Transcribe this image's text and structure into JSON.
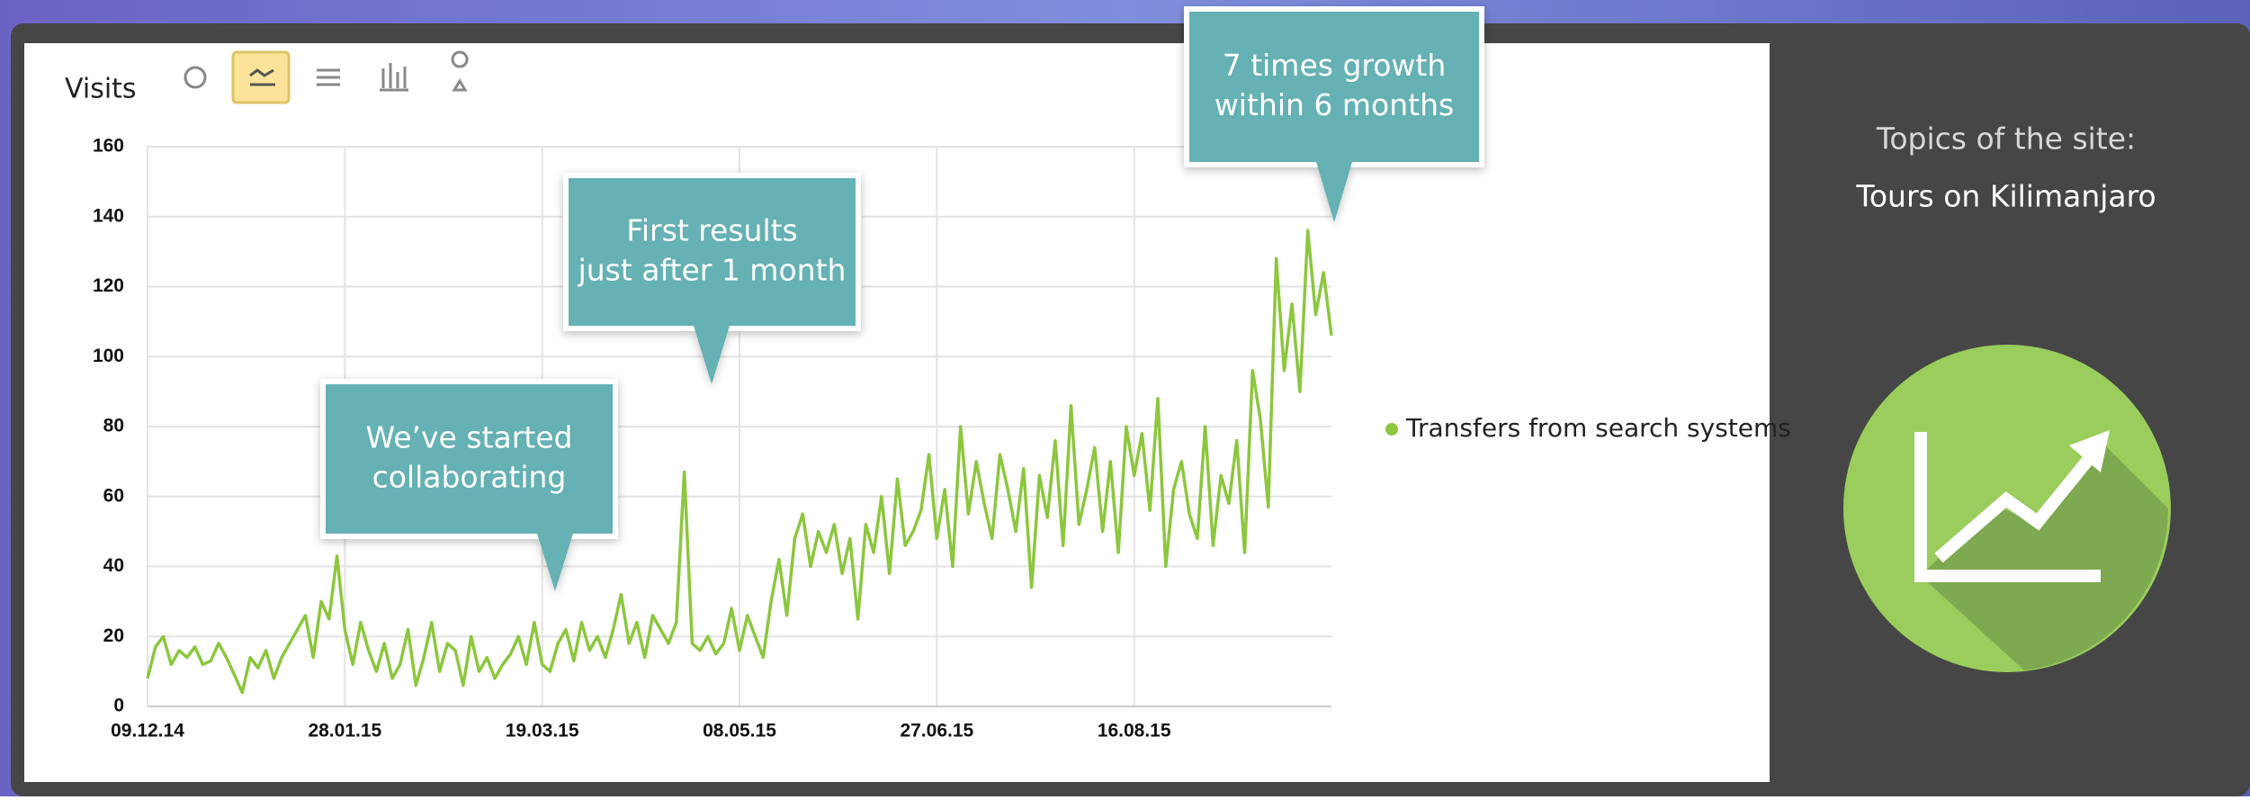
{
  "chart_data": {
    "type": "line",
    "ylabel": "Visits",
    "categories": [
      "09.12.14",
      null,
      null,
      null,
      null,
      null,
      null,
      null,
      null,
      null,
      null,
      null,
      null,
      null,
      null,
      null,
      null,
      null,
      null,
      null,
      null,
      null,
      null,
      null,
      null,
      "28.01.15",
      null,
      null,
      null,
      null,
      null,
      null,
      null,
      null,
      null,
      null,
      null,
      null,
      null,
      null,
      null,
      null,
      null,
      null,
      null,
      null,
      null,
      null,
      null,
      null,
      "19.03.15",
      null,
      null,
      null,
      null,
      null,
      null,
      null,
      null,
      null,
      null,
      null,
      null,
      null,
      null,
      null,
      null,
      null,
      null,
      null,
      null,
      null,
      null,
      null,
      null,
      "08.05.15",
      null,
      null,
      null,
      null,
      null,
      null,
      null,
      null,
      null,
      null,
      null,
      null,
      null,
      null,
      null,
      null,
      null,
      null,
      null,
      null,
      null,
      null,
      null,
      null,
      "27.06.15",
      null,
      null,
      null,
      null,
      null,
      null,
      null,
      null,
      null,
      null,
      null,
      null,
      null,
      null,
      null,
      null,
      null,
      null,
      null,
      null,
      null,
      null,
      null,
      null,
      "16.08.15",
      null,
      null,
      null,
      null,
      null,
      null,
      null,
      null,
      null,
      null,
      null,
      null,
      null,
      null,
      null,
      null,
      null,
      null,
      null,
      null,
      null,
      null,
      null,
      null,
      null
    ],
    "xtick_colors": [
      "#111111",
      "#111111",
      "#111111",
      "#111111",
      "#d0021b",
      "#d0021b"
    ],
    "series": [
      {
        "name": "Transfers from search systems",
        "color": "#8dc63f",
        "values": [
          8,
          17,
          20,
          12,
          16,
          14,
          17,
          12,
          13,
          18,
          14,
          9,
          4,
          14,
          11,
          16,
          8,
          14,
          18,
          22,
          26,
          14,
          30,
          25,
          43,
          22,
          12,
          24,
          16,
          10,
          18,
          8,
          12,
          22,
          6,
          14,
          24,
          10,
          18,
          16,
          6,
          20,
          10,
          14,
          8,
          12,
          15,
          20,
          12,
          24,
          12,
          10,
          18,
          22,
          13,
          24,
          16,
          20,
          14,
          22,
          32,
          18,
          24,
          14,
          26,
          22,
          18,
          24,
          67,
          18,
          16,
          20,
          15,
          18,
          28,
          16,
          26,
          20,
          14,
          30,
          42,
          26,
          48,
          55,
          40,
          50,
          44,
          52,
          38,
          48,
          25,
          52,
          44,
          60,
          38,
          65,
          46,
          50,
          56,
          72,
          48,
          62,
          40,
          80,
          55,
          70,
          58,
          48,
          72,
          62,
          50,
          68,
          34,
          66,
          54,
          76,
          46,
          86,
          52,
          62,
          74,
          50,
          70,
          44,
          80,
          66,
          78,
          56,
          88,
          40,
          62,
          70,
          55,
          48,
          80,
          46,
          66,
          58,
          76,
          44,
          96,
          82,
          57,
          128,
          96,
          115,
          90,
          136,
          112,
          124,
          106
        ]
      }
    ],
    "ylim": [
      0,
      160
    ],
    "yticks": [
      0,
      20,
      40,
      60,
      80,
      100,
      120,
      140,
      160
    ],
    "grid": true,
    "legend": "right",
    "annotations": [
      [
        "We’ve started",
        "collaborating"
      ],
      [
        "First results",
        "just after 1 month"
      ],
      [
        "7 times growth",
        "within 6 months"
      ]
    ]
  },
  "sidebar": {
    "heading": "Topics of the site:",
    "topic": "Tours on Kilimanjaro"
  }
}
